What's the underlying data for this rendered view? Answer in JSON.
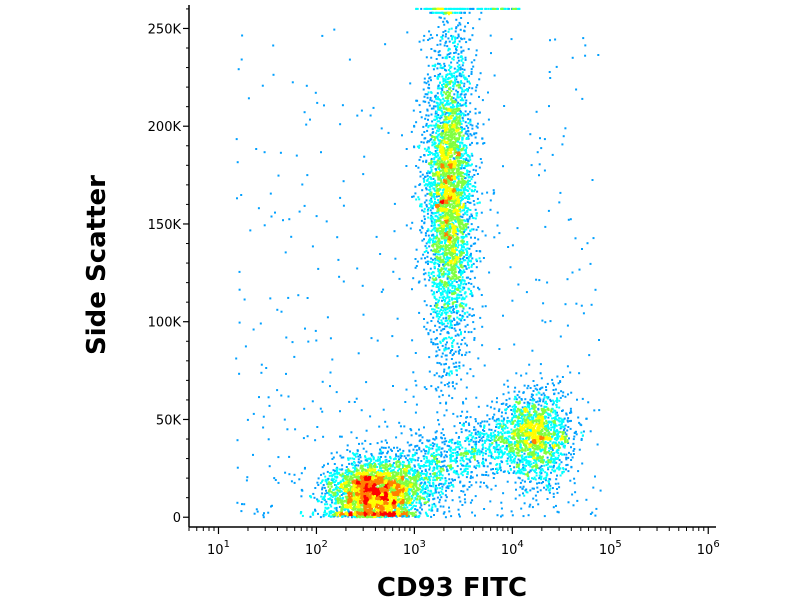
{
  "chart_data": {
    "type": "scatter",
    "subtype": "flow-cytometry density dot plot",
    "xlabel": "CD93 FITC",
    "ylabel": "Side Scatter",
    "x_scale": "log",
    "xlim": [
      5,
      1200000
    ],
    "ylim": [
      -5000,
      262000
    ],
    "x_ticks": [
      {
        "value": 10,
        "base": "10",
        "exp": "1"
      },
      {
        "value": 100,
        "base": "10",
        "exp": "2"
      },
      {
        "value": 1000,
        "base": "10",
        "exp": "3"
      },
      {
        "value": 10000,
        "base": "10",
        "exp": "4"
      },
      {
        "value": 100000,
        "base": "10",
        "exp": "5"
      },
      {
        "value": 1000000,
        "base": "10",
        "exp": "6"
      }
    ],
    "y_ticks": [
      {
        "value": 0,
        "label": "0"
      },
      {
        "value": 50000,
        "label": "50K"
      },
      {
        "value": 100000,
        "label": "100K"
      },
      {
        "value": 150000,
        "label": "150K"
      },
      {
        "value": 200000,
        "label": "200K"
      },
      {
        "value": 250000,
        "label": "250K"
      }
    ],
    "grid": false,
    "legend": "none",
    "density_colors": [
      "#0000ff",
      "#00a0ff",
      "#00ffff",
      "#80ff40",
      "#ffff00",
      "#ff8000",
      "#ff0000"
    ],
    "populations": [
      {
        "name": "low-CD93 cluster",
        "x_center": 400,
        "y_center": 12000,
        "x_log_spread": 0.25,
        "y_spread": 9000,
        "points": 2600
      },
      {
        "name": "high-SSC cluster",
        "x_center": 2300,
        "y_center": 165000,
        "x_log_spread": 0.12,
        "y_spread": 40000,
        "points": 3800
      },
      {
        "name": "CD93-high low-SSC cluster",
        "x_center": 18000,
        "y_center": 40000,
        "x_log_spread": 0.18,
        "y_spread": 12000,
        "points": 1200
      },
      {
        "name": "bridge events",
        "x_from": 200,
        "x_to": 25000,
        "y_from": 8000,
        "y_to": 60000,
        "points": 1800
      },
      {
        "name": "scattered events",
        "x_from": 15,
        "x_to": 80000,
        "y_from": 0,
        "y_to": 250000,
        "points": 500
      }
    ],
    "saturation_band": {
      "x_from": 1000,
      "x_to": 12000,
      "y": 260000
    }
  }
}
